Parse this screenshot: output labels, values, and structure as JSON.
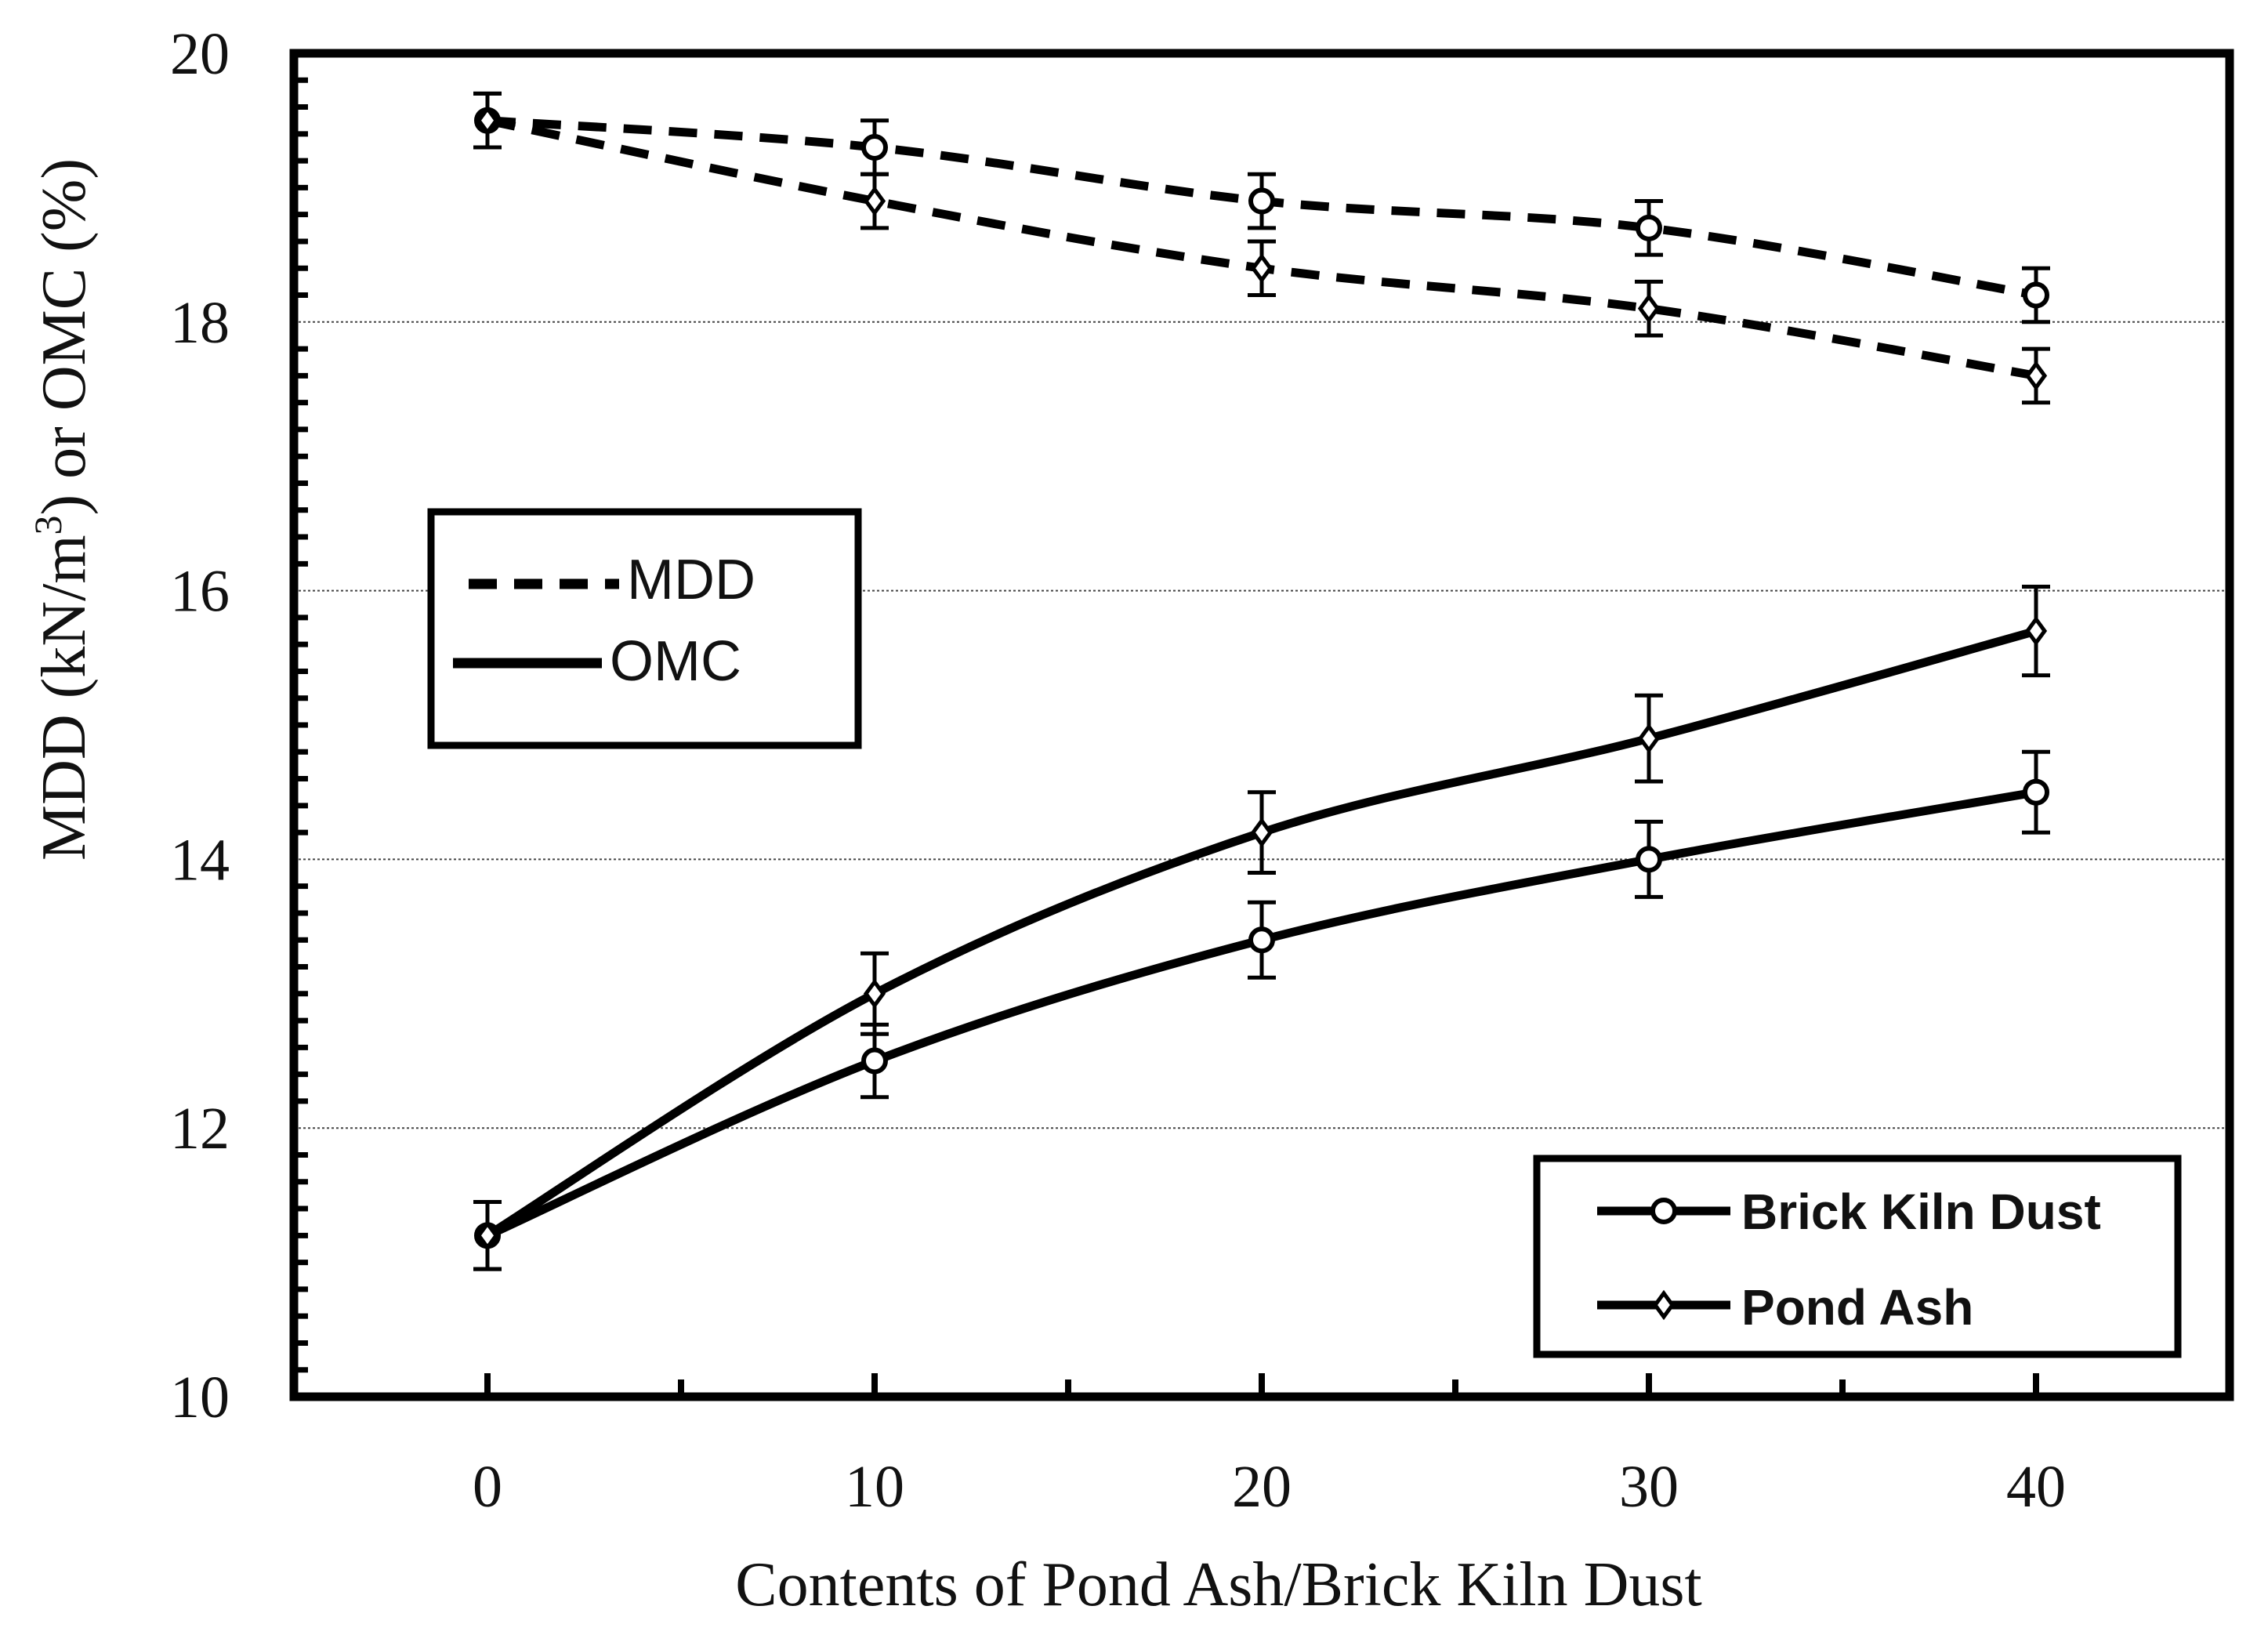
{
  "chart_data": {
    "type": "line",
    "title": "",
    "xlabel": "Contents of  Pond Ash/Brick Kiln Dust",
    "ylabel_prefix": "MDD (kN/m",
    "ylabel_sup": "3",
    "ylabel_suffix": ") or OMC (%)",
    "x": [
      0,
      10,
      20,
      30,
      40
    ],
    "xlim": [
      -5,
      45
    ],
    "ylim": [
      10,
      20
    ],
    "x_ticks": [
      0,
      10,
      20,
      30,
      40
    ],
    "y_ticks": [
      10,
      12,
      14,
      16,
      18,
      20
    ],
    "y_gridlines": [
      12,
      14,
      16,
      18
    ],
    "series": [
      {
        "name": "Brick Kiln Dust MDD",
        "property": "MDD",
        "material": "Brick Kiln Dust",
        "marker": "circle",
        "style": "dashed",
        "values": [
          19.5,
          19.3,
          18.9,
          18.7,
          18.2
        ],
        "errors": [
          0.2,
          0.2,
          0.2,
          0.2,
          0.2
        ]
      },
      {
        "name": "Pond Ash MDD",
        "property": "MDD",
        "material": "Pond Ash",
        "marker": "diamond",
        "style": "dashed",
        "values": [
          19.5,
          18.9,
          18.4,
          18.1,
          17.6
        ],
        "errors": [
          0.2,
          0.2,
          0.2,
          0.2,
          0.2
        ]
      },
      {
        "name": "Brick Kiln Dust OMC",
        "property": "OMC",
        "material": "Brick Kiln Dust",
        "marker": "circle",
        "style": "solid",
        "values": [
          11.2,
          12.5,
          13.4,
          14.0,
          14.5
        ],
        "errors": [
          0.25,
          0.27,
          0.28,
          0.28,
          0.3
        ]
      },
      {
        "name": "Pond Ash OMC",
        "property": "OMC",
        "material": "Pond Ash",
        "marker": "diamond",
        "style": "solid",
        "values": [
          11.2,
          13.0,
          14.2,
          14.9,
          15.7
        ],
        "errors": [
          0.25,
          0.3,
          0.3,
          0.32,
          0.33
        ]
      }
    ],
    "legend_line": [
      {
        "label": "MDD",
        "style": "dashed"
      },
      {
        "label": "OMC",
        "style": "solid"
      }
    ],
    "legend_marker": [
      {
        "label": "Brick Kiln Dust",
        "marker": "circle"
      },
      {
        "label": "Pond Ash",
        "marker": "diamond"
      }
    ]
  }
}
